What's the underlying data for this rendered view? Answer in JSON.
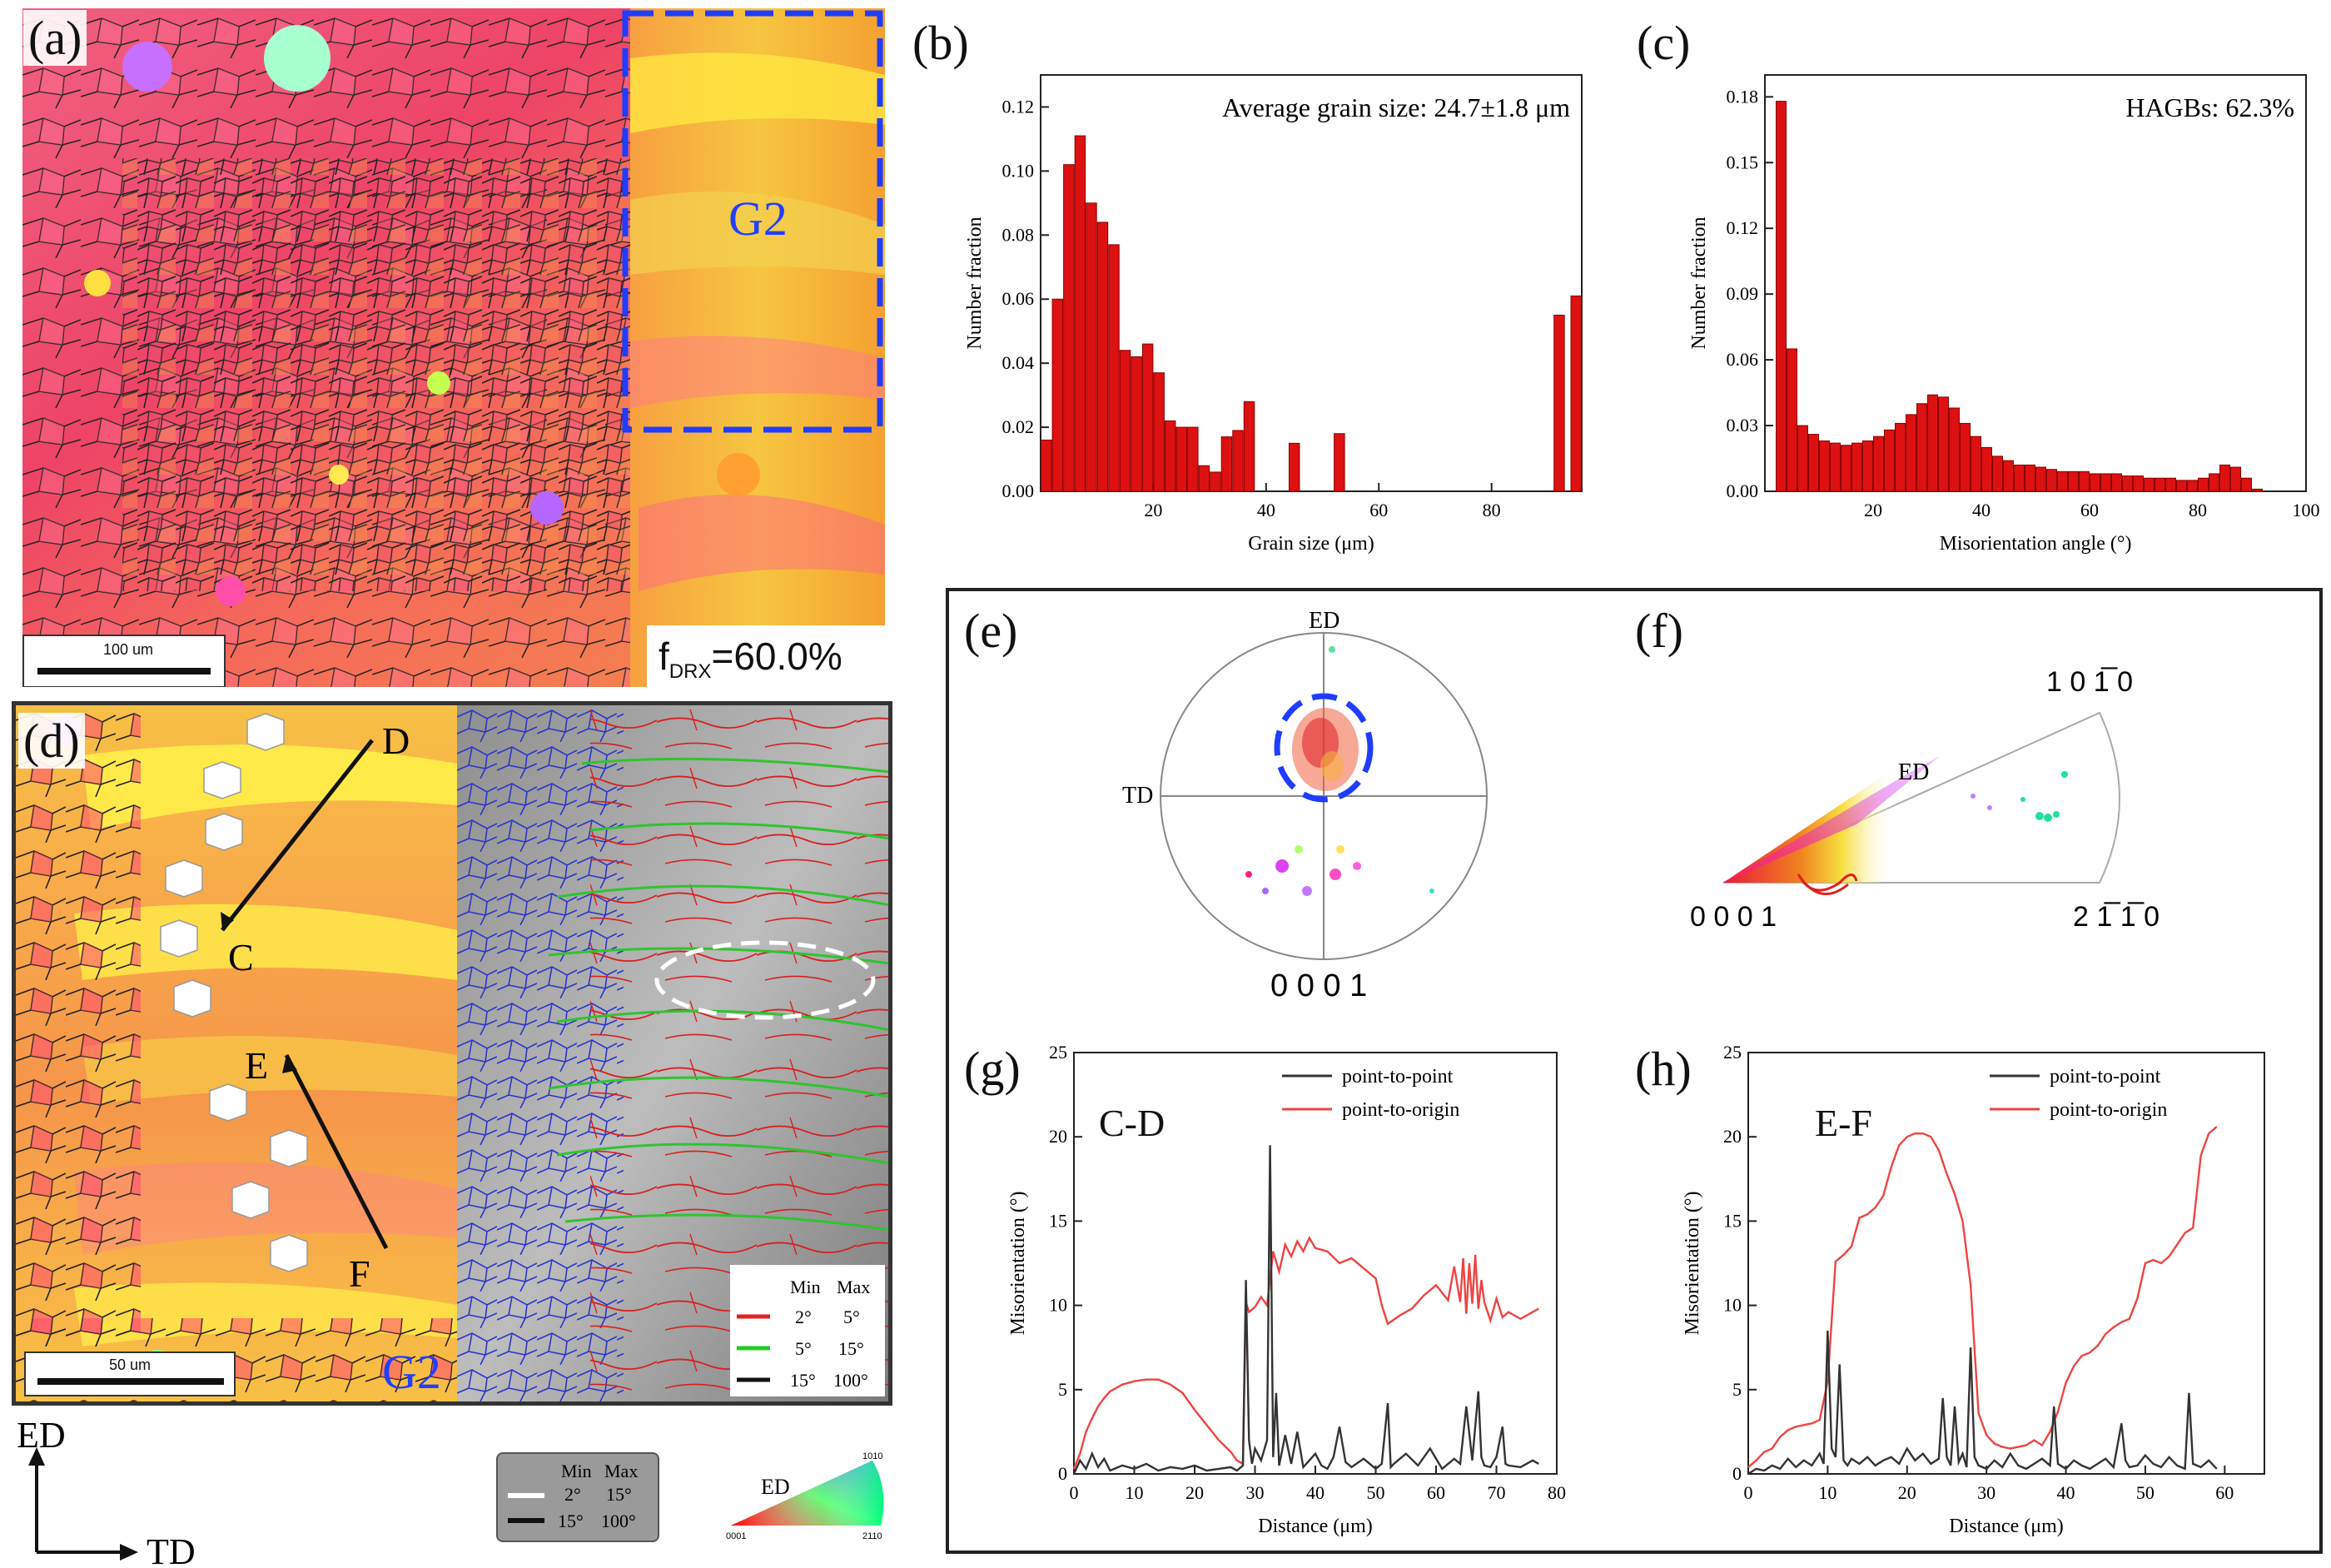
{
  "panels": {
    "a": {
      "label": "(a)",
      "region": "G2",
      "scale": "100 um",
      "fdrx_prefix": "f",
      "fdrx_sub": "DRX",
      "fdrx_value": "=60.0%"
    },
    "b": {
      "label": "(b)",
      "annotation": "Average grain size: 24.7±1.8 μm"
    },
    "c": {
      "label": "(c)",
      "annotation": "HAGBs: 62.3%"
    },
    "d": {
      "label": "(d)",
      "region": "G2",
      "scale": "50 um",
      "points": [
        "D",
        "C",
        "E",
        "F"
      ],
      "legend": {
        "min": "Min",
        "max": "Max",
        "rows": [
          {
            "min": "2°",
            "max": "5°",
            "color": "#e52222"
          },
          {
            "min": "5°",
            "max": "15°",
            "color": "#22cc22"
          },
          {
            "min": "15°",
            "max": "100°",
            "color": "#111111"
          }
        ]
      }
    },
    "e": {
      "label": "(e)",
      "top": "ED",
      "left": "TD",
      "bottom": "0 0 0 1"
    },
    "f": {
      "label": "(f)",
      "top": "1 0 1̅ 0",
      "left": "0 0 0 1",
      "right": "2 1̅ 1̅ 0",
      "inner": "ED"
    },
    "g": {
      "label": "(g)",
      "segment": "C-D"
    },
    "h": {
      "label": "(h)",
      "segment": "E-F"
    }
  },
  "bottom_left": {
    "axis_up": "ED",
    "axis_right": "TD",
    "gb_legend": {
      "min": "Min",
      "max": "Max",
      "rows": [
        {
          "min": "2°",
          "max": "15°"
        },
        {
          "min": "15°",
          "max": "100°"
        }
      ]
    },
    "ipf_key": {
      "title": "ED",
      "c1": "0001",
      "c2": "2110",
      "c3": "1010"
    }
  },
  "chart_data": [
    {
      "type": "bar",
      "panel": "b",
      "xlabel": "Grain size (μm)",
      "ylabel": "Number fraction",
      "xlim": [
        0,
        96
      ],
      "ylim": [
        0,
        0.13
      ],
      "xticks": [
        20,
        40,
        60,
        80
      ],
      "yticks": [
        0.0,
        0.02,
        0.04,
        0.06,
        0.08,
        0.1,
        0.12
      ],
      "xtick_labels": [
        "20",
        "40",
        "60",
        "80"
      ],
      "ytick_labels": [
        "0.00",
        "0.02",
        "0.04",
        "0.06",
        "0.08",
        "0.10",
        "0.12"
      ],
      "x": [
        1,
        3,
        5,
        7,
        9,
        11,
        13,
        15,
        17,
        19,
        21,
        23,
        25,
        27,
        29,
        31,
        33,
        35,
        37,
        45,
        53,
        92,
        95
      ],
      "values": [
        0.016,
        0.06,
        0.102,
        0.111,
        0.09,
        0.084,
        0.077,
        0.044,
        0.042,
        0.046,
        0.037,
        0.022,
        0.02,
        0.02,
        0.008,
        0.006,
        0.017,
        0.019,
        0.028,
        0.015,
        0.018,
        0.055,
        0.061
      ],
      "bar_color": "#dd1111"
    },
    {
      "type": "bar",
      "panel": "c",
      "xlabel": "Misorientation angle (°)",
      "ylabel": "Number fraction",
      "xlim": [
        0,
        100
      ],
      "ylim": [
        0,
        0.19
      ],
      "xticks": [
        20,
        40,
        60,
        80,
        100
      ],
      "yticks": [
        0.0,
        0.03,
        0.06,
        0.09,
        0.12,
        0.15,
        0.18
      ],
      "xtick_labels": [
        "20",
        "40",
        "60",
        "80",
        "100"
      ],
      "ytick_labels": [
        "0.00",
        "0.03",
        "0.06",
        "0.09",
        "0.12",
        "0.15",
        "0.18"
      ],
      "x": [
        3,
        5,
        7,
        9,
        11,
        13,
        15,
        17,
        19,
        21,
        23,
        25,
        27,
        29,
        31,
        33,
        35,
        37,
        39,
        41,
        43,
        45,
        47,
        49,
        51,
        53,
        55,
        57,
        59,
        61,
        63,
        65,
        67,
        69,
        71,
        73,
        75,
        77,
        79,
        81,
        83,
        85,
        87,
        89,
        91
      ],
      "values": [
        0.178,
        0.065,
        0.03,
        0.026,
        0.023,
        0.022,
        0.021,
        0.022,
        0.023,
        0.025,
        0.028,
        0.031,
        0.035,
        0.04,
        0.044,
        0.043,
        0.038,
        0.031,
        0.025,
        0.02,
        0.016,
        0.014,
        0.012,
        0.012,
        0.011,
        0.01,
        0.009,
        0.009,
        0.009,
        0.008,
        0.008,
        0.008,
        0.007,
        0.007,
        0.006,
        0.006,
        0.006,
        0.005,
        0.005,
        0.006,
        0.008,
        0.012,
        0.011,
        0.006,
        0.001
      ],
      "bar_color": "#dd1111"
    },
    {
      "type": "line",
      "panel": "g",
      "xlabel": "Distance (μm)",
      "ylabel": "Misorientation (°)",
      "xlim": [
        0,
        80
      ],
      "ylim": [
        0,
        25
      ],
      "xticks": [
        0,
        10,
        20,
        30,
        40,
        50,
        60,
        70,
        80
      ],
      "yticks": [
        0,
        5,
        10,
        15,
        20,
        25
      ],
      "xtick_labels": [
        "0",
        "10",
        "20",
        "30",
        "40",
        "50",
        "60",
        "70",
        "80"
      ],
      "ytick_labels": [
        "0",
        "5",
        "10",
        "15",
        "20",
        "25"
      ],
      "series": [
        {
          "name": "point-to-point",
          "color": "#333333",
          "x": [
            0,
            1,
            2,
            3,
            4,
            5,
            6,
            8,
            10,
            12,
            14,
            16,
            18,
            20,
            22,
            24,
            26,
            27,
            28,
            28.5,
            29,
            29.5,
            30,
            31,
            32,
            32.5,
            33,
            33.5,
            34,
            35,
            36,
            37,
            38,
            39,
            40,
            41,
            42,
            43,
            44,
            45,
            46,
            48,
            50,
            51,
            52,
            52.5,
            53,
            55,
            57,
            59,
            61,
            63,
            64,
            65,
            66,
            67,
            67.5,
            68,
            69,
            70,
            71,
            71.5,
            72,
            74,
            76,
            77
          ],
          "y": [
            0,
            0.8,
            0.3,
            1.2,
            0.4,
            0.9,
            0.2,
            0.5,
            0.3,
            0.6,
            0.2,
            0.4,
            0.3,
            0.5,
            0.2,
            0.3,
            0.4,
            0.2,
            0.5,
            11.5,
            2,
            0.6,
            1.5,
            0.8,
            2,
            19.5,
            1.0,
            4.8,
            0.5,
            2.3,
            0.6,
            2.5,
            0.4,
            0.8,
            1.2,
            0.5,
            0.3,
            1.0,
            2.8,
            0.7,
            0.4,
            0.9,
            0.3,
            0.6,
            4.2,
            0.4,
            0.6,
            1.2,
            0.5,
            1.5,
            0.3,
            0.9,
            0.6,
            4.0,
            0.8,
            4.9,
            1.0,
            0.5,
            0.4,
            1.0,
            2.8,
            0.6,
            0.5,
            0.4,
            0.8,
            0.6
          ]
        },
        {
          "name": "point-to-origin",
          "color": "#ee4444",
          "x": [
            0,
            1,
            2,
            3,
            4,
            5,
            6,
            7,
            8,
            10,
            12,
            14,
            16,
            18,
            20,
            22,
            24,
            26,
            27,
            28,
            28.5,
            29,
            30,
            31,
            32,
            33,
            34,
            35,
            36,
            37,
            38,
            39,
            40,
            42,
            44,
            46,
            48,
            50,
            51,
            52,
            54,
            56,
            58,
            60,
            62,
            63,
            64,
            64.5,
            65,
            65.5,
            66,
            66.5,
            67,
            67.5,
            68,
            69,
            70,
            71,
            72,
            74,
            76,
            77
          ],
          "y": [
            0.3,
            1.2,
            2.5,
            3.3,
            4.0,
            4.5,
            4.9,
            5.1,
            5.3,
            5.5,
            5.6,
            5.6,
            5.3,
            4.8,
            3.8,
            2.9,
            2.0,
            1.3,
            0.8,
            0.6,
            10.2,
            9.6,
            9.9,
            10.5,
            10.0,
            13.2,
            12.0,
            13.6,
            12.9,
            13.8,
            13.2,
            14.0,
            13.4,
            13.2,
            12.5,
            12.8,
            12.2,
            11.6,
            10.0,
            8.9,
            9.4,
            9.8,
            10.6,
            11.2,
            10.3,
            12.3,
            10.2,
            12.8,
            9.5,
            12.5,
            10.1,
            13.0,
            9.8,
            11.5,
            10.2,
            9.1,
            10.4,
            9.3,
            9.6,
            9.2,
            9.6,
            9.8
          ]
        }
      ]
    },
    {
      "type": "line",
      "panel": "h",
      "xlabel": "Distance (μm)",
      "ylabel": "Misorientation (°)",
      "xlim": [
        0,
        65
      ],
      "ylim": [
        0,
        25
      ],
      "xticks": [
        0,
        10,
        20,
        30,
        40,
        50,
        60
      ],
      "yticks": [
        0,
        5,
        10,
        15,
        20,
        25
      ],
      "xtick_labels": [
        "0",
        "10",
        "20",
        "30",
        "40",
        "50",
        "60"
      ],
      "ytick_labels": [
        "0",
        "5",
        "10",
        "15",
        "20",
        "25"
      ],
      "series": [
        {
          "name": "point-to-point",
          "color": "#333333",
          "x": [
            0,
            1,
            2,
            3,
            4,
            5,
            6,
            7,
            8,
            9,
            9.5,
            10,
            10.5,
            11,
            11.5,
            12,
            12.5,
            13,
            14,
            15,
            16,
            17,
            18,
            19,
            20,
            21,
            22,
            23,
            24,
            24.5,
            25,
            25.5,
            26,
            26.5,
            27,
            27.5,
            28,
            28.5,
            29,
            30,
            31,
            32,
            33,
            34,
            35,
            36,
            37,
            38,
            38.5,
            39,
            40,
            41,
            42,
            43,
            44,
            45,
            46,
            47,
            47.5,
            48,
            49,
            50,
            51,
            52,
            53,
            54,
            55,
            55.5,
            56,
            57,
            58,
            59
          ],
          "y": [
            0,
            0.3,
            0.2,
            0.5,
            0.3,
            0.9,
            0.4,
            0.8,
            0.5,
            1.2,
            0.6,
            8.5,
            1.5,
            1.0,
            6.5,
            0.8,
            0.5,
            0.9,
            0.6,
            1.0,
            0.5,
            0.8,
            1.0,
            0.6,
            1.5,
            0.8,
            1.2,
            0.6,
            0.9,
            4.5,
            1.0,
            0.5,
            4.0,
            0.7,
            1.2,
            0.4,
            7.5,
            1.0,
            0.5,
            0.3,
            0.8,
            0.4,
            1.2,
            0.5,
            0.3,
            0.6,
            0.9,
            0.5,
            4.0,
            0.6,
            0.3,
            0.8,
            0.5,
            0.3,
            0.6,
            0.9,
            0.4,
            3.0,
            0.8,
            0.4,
            0.5,
            1.1,
            0.6,
            0.4,
            1.0,
            0.5,
            0.3,
            4.8,
            0.6,
            0.4,
            0.8,
            0.3
          ]
        },
        {
          "name": "point-to-origin",
          "color": "#ee4444",
          "x": [
            0,
            1,
            2,
            3,
            4,
            5,
            6,
            7,
            8,
            9,
            10,
            11,
            12,
            13,
            14,
            15,
            16,
            17,
            18,
            19,
            20,
            21,
            22,
            23,
            24,
            25,
            26,
            27,
            28,
            29,
            30,
            31,
            32,
            33,
            34,
            35,
            36,
            37,
            38,
            39,
            40,
            41,
            42,
            43,
            44,
            45,
            46,
            47,
            48,
            49,
            50,
            51,
            52,
            53,
            54,
            55,
            56,
            57,
            58,
            59
          ],
          "y": [
            0.4,
            0.8,
            1.3,
            1.5,
            2.2,
            2.6,
            2.8,
            2.9,
            3.0,
            3.2,
            5.5,
            12.6,
            13.0,
            13.5,
            15.2,
            15.4,
            15.8,
            16.5,
            18.2,
            19.5,
            20.0,
            20.2,
            20.2,
            20.0,
            19.2,
            17.8,
            16.6,
            15.0,
            11.2,
            3.6,
            2.3,
            1.8,
            1.6,
            1.5,
            1.6,
            1.7,
            2.0,
            1.7,
            2.5,
            3.7,
            5.4,
            6.4,
            7.0,
            7.2,
            7.6,
            8.3,
            8.7,
            9.0,
            9.2,
            10.4,
            12.5,
            12.7,
            12.5,
            12.9,
            13.6,
            14.3,
            14.6,
            18.9,
            20.2,
            20.6
          ]
        }
      ]
    }
  ]
}
